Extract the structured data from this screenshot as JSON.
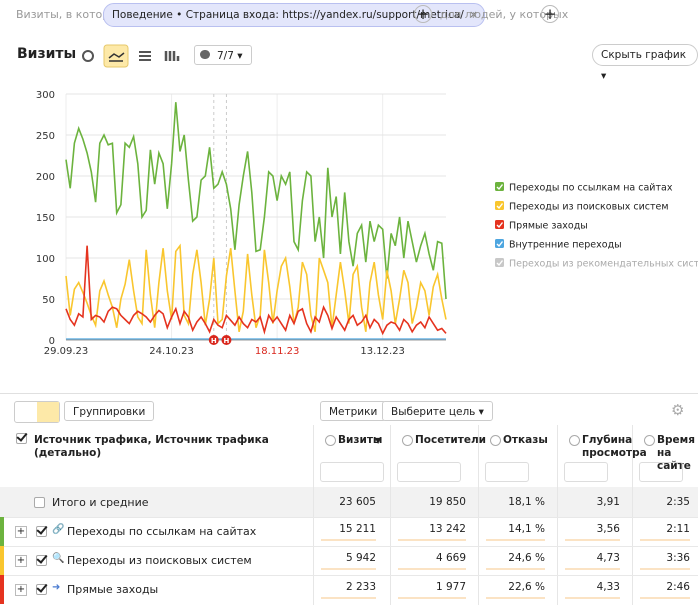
{
  "filter": {
    "prefix": "Визиты, в которых",
    "chip": "Поведение • Страница входа: https://yandex.ru/support/metrica/",
    "suffix": "для людей, у которых"
  },
  "chart_header": {
    "title": "Визиты",
    "series_count": "7/7",
    "hide_button": "Скрыть график"
  },
  "chart_data": {
    "type": "line",
    "categories": [
      "29.09.23",
      null,
      null,
      null,
      null,
      null,
      null,
      null,
      null,
      null,
      null,
      null,
      null,
      null,
      null,
      null,
      null,
      null,
      null,
      null,
      null,
      null,
      null,
      null,
      null,
      "24.10.23",
      null,
      null,
      null,
      null,
      null,
      null,
      null,
      null,
      null,
      null,
      null,
      null,
      null,
      null,
      null,
      null,
      null,
      null,
      null,
      null,
      null,
      null,
      null,
      null,
      "18.11.23",
      null,
      null,
      null,
      null,
      null,
      null,
      null,
      null,
      null,
      null,
      null,
      null,
      null,
      null,
      null,
      null,
      null,
      null,
      null,
      null,
      null,
      null,
      null,
      null,
      "13.12.23",
      null,
      null,
      null,
      null,
      null,
      null,
      null,
      null,
      null,
      null,
      null,
      null,
      null,
      null,
      null
    ],
    "highlight_categories": [
      50
    ],
    "highlight_color": "#d9261c",
    "annotations": [
      {
        "label": "Н",
        "index": 35
      },
      {
        "label": "Н",
        "index": 38
      }
    ],
    "ylim": [
      0,
      300
    ],
    "yticks": [
      0,
      50,
      100,
      150,
      200,
      250,
      300
    ],
    "grid": true,
    "series": [
      {
        "name": "Переходы по ссылкам на сайтах",
        "color": "#6cb33e",
        "enabled": true,
        "values": [
          220,
          185,
          240,
          258,
          245,
          228,
          205,
          168,
          240,
          250,
          238,
          240,
          155,
          165,
          240,
          235,
          248,
          215,
          150,
          158,
          232,
          190,
          228,
          215,
          160,
          215,
          290,
          230,
          250,
          195,
          145,
          150,
          195,
          200,
          235,
          185,
          190,
          205,
          190,
          160,
          110,
          165,
          200,
          230,
          180,
          108,
          110,
          150,
          205,
          200,
          170,
          200,
          190,
          205,
          120,
          110,
          170,
          205,
          200,
          120,
          150,
          100,
          210,
          150,
          175,
          105,
          180,
          120,
          90,
          130,
          140,
          95,
          145,
          120,
          140,
          135,
          75,
          130,
          115,
          150,
          100,
          145,
          120,
          95,
          115,
          130,
          105,
          85,
          120,
          118,
          50
        ]
      },
      {
        "name": "Переходы из поисковых систем",
        "color": "#f9c62e",
        "enabled": true,
        "values": [
          78,
          30,
          62,
          70,
          58,
          45,
          30,
          18,
          60,
          72,
          55,
          40,
          15,
          50,
          68,
          98,
          60,
          28,
          20,
          110,
          55,
          15,
          70,
          112,
          60,
          25,
          108,
          115,
          30,
          20,
          80,
          110,
          70,
          18,
          50,
          100,
          20,
          25,
          78,
          112,
          60,
          10,
          35,
          105,
          55,
          15,
          30,
          110,
          70,
          20,
          60,
          90,
          100,
          65,
          20,
          40,
          95,
          80,
          30,
          10,
          100,
          85,
          70,
          15,
          55,
          95,
          60,
          20,
          80,
          90,
          40,
          10,
          70,
          95,
          55,
          25,
          85,
          60,
          20,
          50,
          85,
          70,
          20,
          40,
          70,
          60,
          30,
          65,
          80,
          50,
          25
        ]
      },
      {
        "name": "Прямые заходы",
        "color": "#e5331f",
        "enabled": true,
        "values": [
          38,
          25,
          18,
          32,
          28,
          115,
          25,
          30,
          28,
          22,
          35,
          40,
          38,
          30,
          25,
          20,
          30,
          35,
          32,
          28,
          22,
          30,
          36,
          32,
          15,
          28,
          38,
          20,
          35,
          28,
          12,
          22,
          28,
          20,
          10,
          25,
          18,
          15,
          30,
          24,
          18,
          28,
          20,
          15,
          25,
          22,
          28,
          10,
          30,
          22,
          28,
          20,
          12,
          30,
          20,
          35,
          38,
          20,
          10,
          28,
          22,
          40,
          30,
          14,
          28,
          20,
          12,
          25,
          30,
          18,
          22,
          30,
          15,
          25,
          20,
          8,
          18,
          22,
          20,
          12,
          25,
          20,
          10,
          18,
          22,
          15,
          28,
          20,
          12,
          14,
          8
        ]
      },
      {
        "name": "Внутренние переходы",
        "color": "#4ea6e0",
        "enabled": true,
        "values": [
          1,
          1,
          1,
          1,
          1,
          1,
          1,
          1,
          1,
          1,
          1,
          1,
          1,
          1,
          1,
          1,
          1,
          1,
          1,
          1,
          1,
          1,
          1,
          1,
          1,
          1,
          1,
          1,
          1,
          1,
          1,
          1,
          1,
          1,
          1,
          1,
          1,
          1,
          1,
          1,
          1,
          1,
          1,
          1,
          1,
          1,
          1,
          1,
          1,
          1,
          1,
          1,
          1,
          1,
          1,
          1,
          1,
          1,
          1,
          1,
          1,
          1,
          1,
          1,
          1,
          1,
          1,
          1,
          1,
          1,
          1,
          1,
          1,
          1,
          1,
          1,
          1,
          1,
          1,
          1,
          1,
          1,
          1,
          1,
          1,
          1,
          1,
          1,
          1,
          1,
          1
        ]
      },
      {
        "name": "Переходы из рекомендательных систем",
        "color": "#c8c8c8",
        "enabled": false
      }
    ]
  },
  "toolbar": {
    "groupings": "Группировки",
    "metrics": "Метрики",
    "goal": "Выберите цель"
  },
  "table": {
    "dimension_header": "Источник трафика, Источник трафика (детально)",
    "columns": [
      "Визиты",
      "Посетители",
      "Отказы",
      "Глубина просмотра",
      "Время на сайте"
    ],
    "totals": {
      "label": "Итого и средние",
      "values": [
        "23 605",
        "19 850",
        "18,1 %",
        "3,91",
        "2:35"
      ]
    },
    "rows": [
      {
        "label": "Переходы по ссылкам на сайтах",
        "color": "#6cb33e",
        "values": [
          "15 211",
          "13 242",
          "14,1 %",
          "3,56",
          "2:11"
        ]
      },
      {
        "label": "Переходы из поисковых систем",
        "color": "#f9c62e",
        "values": [
          "5 942",
          "4 669",
          "24,6 %",
          "4,73",
          "3:36"
        ]
      },
      {
        "label": "Прямые заходы",
        "color": "#e5331f",
        "values": [
          "2 233",
          "1 977",
          "22,6 %",
          "4,33",
          "2:46"
        ]
      }
    ]
  }
}
